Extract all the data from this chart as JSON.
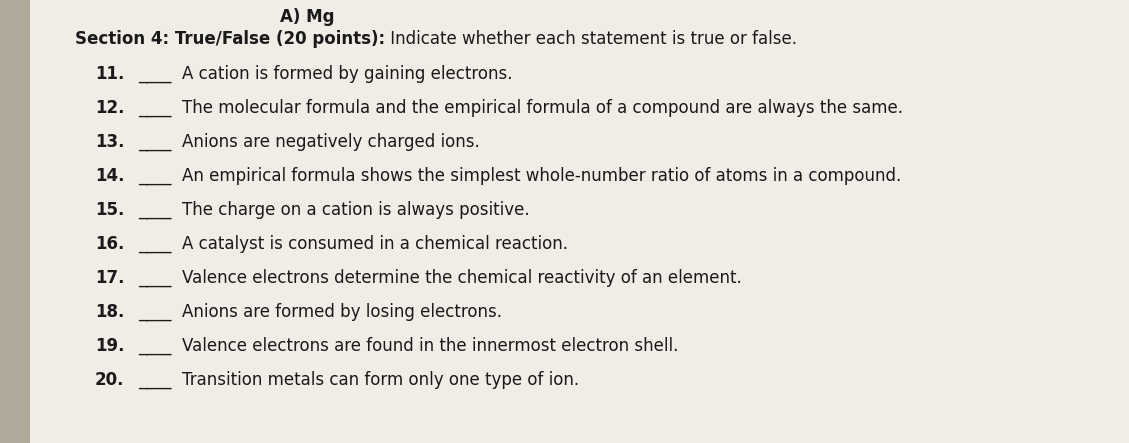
{
  "background_color": "#d8d0c8",
  "paper_color": "#f0ece6",
  "text_color": "#1a1a1a",
  "title_bold": "Section 4: True/False (20 points):",
  "title_normal": " Indicate whether each statement is true or false.",
  "items": [
    {
      "num": "11.",
      "blank": "____",
      "text": "A cation is formed by gaining electrons."
    },
    {
      "num": "12.",
      "blank": "____",
      "text": "The molecular formula and the empirical formula of a compound are always the same."
    },
    {
      "num": "13.",
      "blank": "____",
      "text": "Anions are negatively charged ions."
    },
    {
      "num": "14.",
      "blank": "____",
      "text": "An empirical formula shows the simplest whole-number ratio of atoms in a compound."
    },
    {
      "num": "15.",
      "blank": "____",
      "text": "The charge on a cation is always positive."
    },
    {
      "num": "16.",
      "blank": "____",
      "text": "A catalyst is consumed in a chemical reaction."
    },
    {
      "num": "17.",
      "blank": "____",
      "text": "Valence electrons determine the chemical reactivity of an element."
    },
    {
      "num": "18.",
      "blank": "____",
      "text": "Anions are formed by losing electrons."
    },
    {
      "num": "19.",
      "blank": "____",
      "text": "Valence electrons are found in the innermost electron shell."
    },
    {
      "num": "20.",
      "blank": "____",
      "text": "Transition metals can form only one type of ion."
    }
  ],
  "header_text": "A) Mg",
  "figsize": [
    11.29,
    4.43
  ],
  "dpi": 100,
  "font_size_title": 12.0,
  "font_size_items": 12.0
}
